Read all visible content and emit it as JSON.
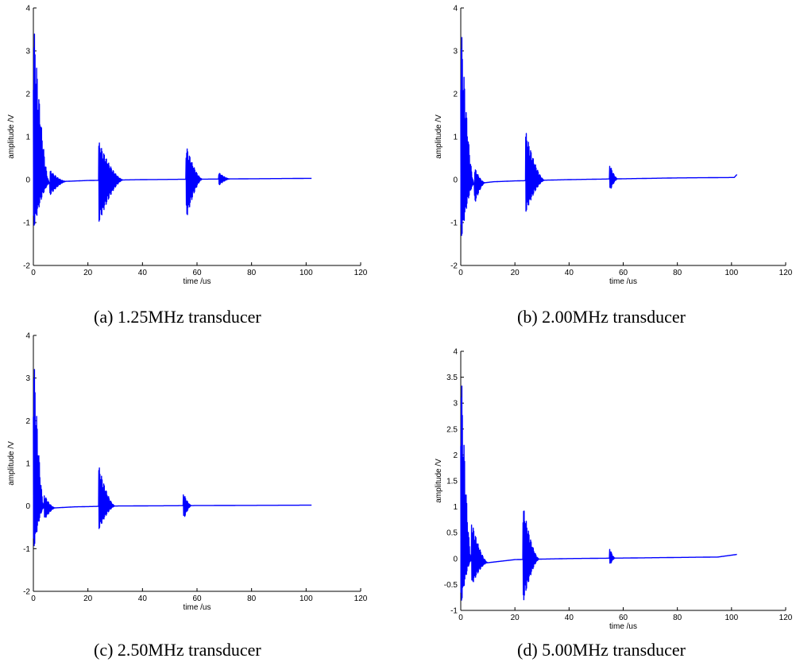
{
  "chart_data": [
    {
      "type": "line",
      "caption": "(a) 1.25MHz transducer",
      "xlabel": "time /us",
      "ylabel": "amplitude /V",
      "xlim": [
        0,
        120
      ],
      "ylim": [
        -2,
        4
      ],
      "xticks": [
        "0",
        "20",
        "40",
        "60",
        "80",
        "100",
        "120"
      ],
      "yticks": [
        "-2",
        "-1",
        "0",
        "1",
        "2",
        "3",
        "4"
      ],
      "xtick_values": [
        0,
        20,
        40,
        60,
        80,
        100,
        120
      ],
      "ytick_values": [
        -2,
        -1,
        0,
        1,
        2,
        3,
        4
      ],
      "color": "#0000ff",
      "x_end": 102,
      "baseline": [
        [
          0,
          0
        ],
        [
          5,
          -0.08
        ],
        [
          12,
          -0.04
        ],
        [
          20,
          -0.02
        ],
        [
          40,
          0.0
        ],
        [
          60,
          0.01
        ],
        [
          80,
          0.02
        ],
        [
          102,
          0.03
        ]
      ],
      "bursts": [
        {
          "t0": 0,
          "t1": 6,
          "max": 3.8,
          "min": -1.2
        },
        {
          "t0": 6,
          "t1": 12,
          "max": 0.3,
          "min": -0.3
        },
        {
          "t0": 24,
          "t1": 33,
          "max": 0.9,
          "min": -1.0
        },
        {
          "t0": 56,
          "t1": 62,
          "max": 0.8,
          "min": -0.95
        },
        {
          "t0": 68,
          "t1": 72,
          "max": 0.15,
          "min": -0.15
        }
      ]
    },
    {
      "type": "line",
      "caption": "(b) 2.00MHz transducer",
      "xlabel": "time /us",
      "ylabel": "amplitude /V",
      "xlim": [
        0,
        120
      ],
      "ylim": [
        -2,
        4
      ],
      "xticks": [
        "0",
        "20",
        "40",
        "60",
        "80",
        "100",
        "120"
      ],
      "yticks": [
        "-2",
        "-1",
        "0",
        "1",
        "2",
        "3",
        "4"
      ],
      "xtick_values": [
        0,
        20,
        40,
        60,
        80,
        100,
        120
      ],
      "ytick_values": [
        -2,
        -1,
        0,
        1,
        2,
        3,
        4
      ],
      "color": "#0000ff",
      "x_end": 102,
      "baseline": [
        [
          0,
          0
        ],
        [
          5,
          -0.1
        ],
        [
          12,
          -0.05
        ],
        [
          20,
          -0.03
        ],
        [
          40,
          0.0
        ],
        [
          60,
          0.02
        ],
        [
          80,
          0.04
        ],
        [
          101,
          0.05
        ],
        [
          102,
          0.12
        ]
      ],
      "bursts": [
        {
          "t0": 0,
          "t1": 5,
          "max": 3.8,
          "min": -1.5
        },
        {
          "t0": 5,
          "t1": 9,
          "max": 0.4,
          "min": -0.5
        },
        {
          "t0": 24,
          "t1": 31,
          "max": 1.15,
          "min": -0.75
        },
        {
          "t0": 55,
          "t1": 58,
          "max": 0.35,
          "min": -0.3
        }
      ]
    },
    {
      "type": "line",
      "caption": "(c) 2.50MHz transducer",
      "xlabel": "time /us",
      "ylabel": "amplitude /V",
      "xlim": [
        0,
        120
      ],
      "ylim": [
        -2,
        4
      ],
      "xticks": [
        "0",
        "20",
        "40",
        "60",
        "80",
        "100",
        "120"
      ],
      "yticks": [
        "-2",
        "-1",
        "0",
        "1",
        "2",
        "3",
        "4"
      ],
      "xtick_values": [
        0,
        20,
        40,
        60,
        80,
        100,
        120
      ],
      "ytick_values": [
        -2,
        -1,
        0,
        1,
        2,
        3,
        4
      ],
      "color": "#0000ff",
      "x_end": 102,
      "baseline": [
        [
          0,
          0
        ],
        [
          6,
          -0.05
        ],
        [
          15,
          -0.02
        ],
        [
          30,
          0.0
        ],
        [
          60,
          0.01
        ],
        [
          102,
          0.02
        ]
      ],
      "bursts": [
        {
          "t0": 0,
          "t1": 4,
          "max": 3.8,
          "min": -1.1
        },
        {
          "t0": 4,
          "t1": 8,
          "max": 0.3,
          "min": -0.3
        },
        {
          "t0": 24,
          "t1": 30,
          "max": 0.95,
          "min": -0.55
        },
        {
          "t0": 55,
          "t1": 58,
          "max": 0.3,
          "min": -0.35
        }
      ]
    },
    {
      "type": "line",
      "caption": "(d) 5.00MHz transducer",
      "xlabel": "time /us",
      "ylabel": "amplitude /V",
      "xlim": [
        0,
        120
      ],
      "ylim": [
        -1,
        4
      ],
      "xticks": [
        "0",
        "20",
        "40",
        "60",
        "80",
        "100",
        "120"
      ],
      "yticks": [
        "-1",
        "-0.5",
        "0",
        "0.5",
        "1",
        "1.5",
        "2",
        "2.5",
        "3",
        "3.5",
        "4"
      ],
      "xtick_values": [
        0,
        20,
        40,
        60,
        80,
        100,
        120
      ],
      "ytick_values": [
        -1,
        -0.5,
        0,
        0.5,
        1,
        1.5,
        2,
        2.5,
        3,
        3.5,
        4
      ],
      "color": "#0000ff",
      "x_end": 102,
      "baseline": [
        [
          0,
          0
        ],
        [
          10,
          -0.08
        ],
        [
          20,
          -0.02
        ],
        [
          40,
          0.0
        ],
        [
          60,
          0.01
        ],
        [
          95,
          0.03
        ],
        [
          102,
          0.08
        ]
      ],
      "bursts": [
        {
          "t0": 0,
          "t1": 4,
          "max": 3.95,
          "min": -0.95
        },
        {
          "t0": 4,
          "t1": 10,
          "max": 0.75,
          "min": -0.5
        },
        {
          "t0": 23,
          "t1": 29,
          "max": 1.05,
          "min": -0.85
        },
        {
          "t0": 55,
          "t1": 57,
          "max": 0.2,
          "min": -0.15
        }
      ]
    }
  ]
}
